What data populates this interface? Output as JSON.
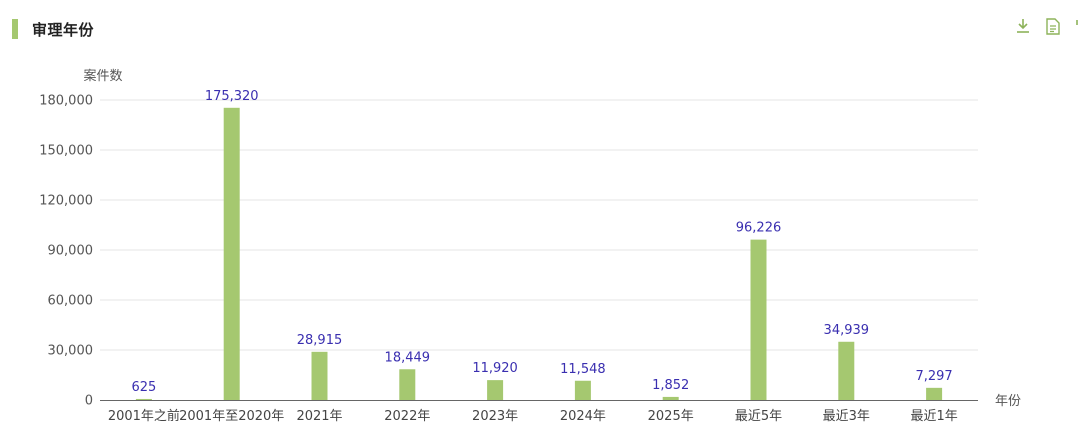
{
  "header": {
    "title": "审理年份",
    "icons": [
      "download-icon",
      "document-icon",
      "more-icon"
    ]
  },
  "colors": {
    "accent": "#a5c870",
    "bar": "#a5c870",
    "data_label": "#3a2fb0",
    "grid": "#e6e6e6"
  },
  "chart_data": {
    "type": "bar",
    "title": "",
    "xlabel": "年份",
    "ylabel": "案件数",
    "categories": [
      "2001年之前",
      "2001年至2020年",
      "2021年",
      "2022年",
      "2023年",
      "2024年",
      "2025年",
      "最近5年",
      "最近3年",
      "最近1年"
    ],
    "values": [
      625,
      175320,
      28915,
      18449,
      11920,
      11548,
      1852,
      96226,
      34939,
      7297
    ],
    "value_labels": [
      "625",
      "175,320",
      "28,915",
      "18,449",
      "11,920",
      "11,548",
      "1,852",
      "96,226",
      "34,939",
      "7,297"
    ],
    "yticks": [
      "0",
      "30,000",
      "60,000",
      "90,000",
      "120,000",
      "150,000",
      "180,000"
    ],
    "ylim": [
      0,
      180000
    ],
    "grid": true,
    "legend": "none"
  }
}
